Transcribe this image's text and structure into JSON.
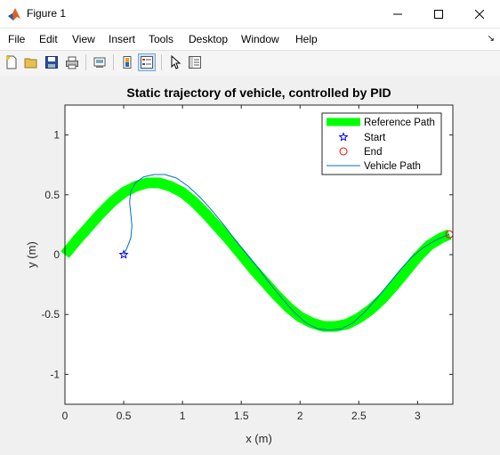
{
  "window": {
    "title": "Figure 1"
  },
  "menu": {
    "items": [
      "File",
      "Edit",
      "View",
      "Insert",
      "Tools",
      "Desktop",
      "Window",
      "Help"
    ]
  },
  "toolbar": {
    "icons": [
      "new-figure-icon",
      "open-file-icon",
      "save-icon",
      "print-icon",
      "link-plot-icon",
      "insert-colorbar-icon",
      "insert-legend-icon",
      "pointer-icon",
      "property-editor-icon"
    ]
  },
  "chart_data": {
    "type": "line",
    "title": "Static trajectory of vehicle, controlled by PID",
    "xlabel": "x (m)",
    "ylabel": "y (m)",
    "xlim": [
      0,
      3.3
    ],
    "ylim": [
      -1.25,
      1.25
    ],
    "xticks": [
      0,
      0.5,
      1,
      1.5,
      2,
      2.5,
      3
    ],
    "yticks": [
      -1,
      -0.5,
      0,
      0.5,
      1
    ],
    "xtick_labels": [
      "0",
      "0.5",
      "1",
      "1.5",
      "2",
      "2.5",
      "3"
    ],
    "ytick_labels": [
      "-1",
      "-0.5",
      "0",
      "0.5",
      "1"
    ],
    "grid": false,
    "legend_position": "top-right",
    "legend": [
      "Reference Path",
      "Start",
      "End",
      "Vehicle Path"
    ],
    "colors": {
      "reference": "#00ff00",
      "start": "#0000ff",
      "end": "#ff0000",
      "vehicle": "#0072bd"
    },
    "reference_path": {
      "x": [
        0,
        0.1,
        0.2,
        0.3,
        0.4,
        0.5,
        0.6,
        0.7,
        0.8,
        0.9,
        1.0,
        1.1,
        1.2,
        1.3,
        1.4,
        1.5,
        1.6,
        1.7,
        1.8,
        1.9,
        2.0,
        2.1,
        2.2,
        2.3,
        2.4,
        2.5,
        2.6,
        2.7,
        2.8,
        2.9,
        3.0,
        3.1,
        3.2,
        3.27
      ],
      "y": [
        0,
        0.12,
        0.23,
        0.34,
        0.44,
        0.52,
        0.57,
        0.6,
        0.6,
        0.57,
        0.52,
        0.44,
        0.34,
        0.23,
        0.12,
        0.0,
        -0.12,
        -0.23,
        -0.34,
        -0.44,
        -0.52,
        -0.57,
        -0.6,
        -0.6,
        -0.58,
        -0.53,
        -0.46,
        -0.37,
        -0.26,
        -0.14,
        -0.02,
        0.08,
        0.14,
        0.17
      ]
    },
    "vehicle_path": {
      "x": [
        0.5,
        0.53,
        0.56,
        0.57,
        0.56,
        0.55,
        0.56,
        0.6,
        0.67,
        0.76,
        0.85,
        0.95,
        1.05,
        1.15,
        1.25,
        1.35,
        1.45,
        1.55,
        1.65,
        1.75,
        1.85,
        1.95,
        2.05,
        2.15,
        2.25,
        2.35,
        2.45,
        2.55,
        2.65,
        2.75,
        2.85,
        2.95,
        3.05,
        3.15,
        3.22,
        3.27
      ],
      "y": [
        0.0,
        0.06,
        0.14,
        0.24,
        0.34,
        0.44,
        0.53,
        0.6,
        0.65,
        0.67,
        0.67,
        0.64,
        0.57,
        0.48,
        0.37,
        0.25,
        0.12,
        0.0,
        -0.12,
        -0.25,
        -0.37,
        -0.48,
        -0.57,
        -0.62,
        -0.63,
        -0.62,
        -0.57,
        -0.48,
        -0.37,
        -0.25,
        -0.13,
        -0.02,
        0.06,
        0.12,
        0.15,
        0.17
      ]
    },
    "start": {
      "x": 0.5,
      "y": 0.0
    },
    "end": {
      "x": 3.27,
      "y": 0.17
    }
  }
}
